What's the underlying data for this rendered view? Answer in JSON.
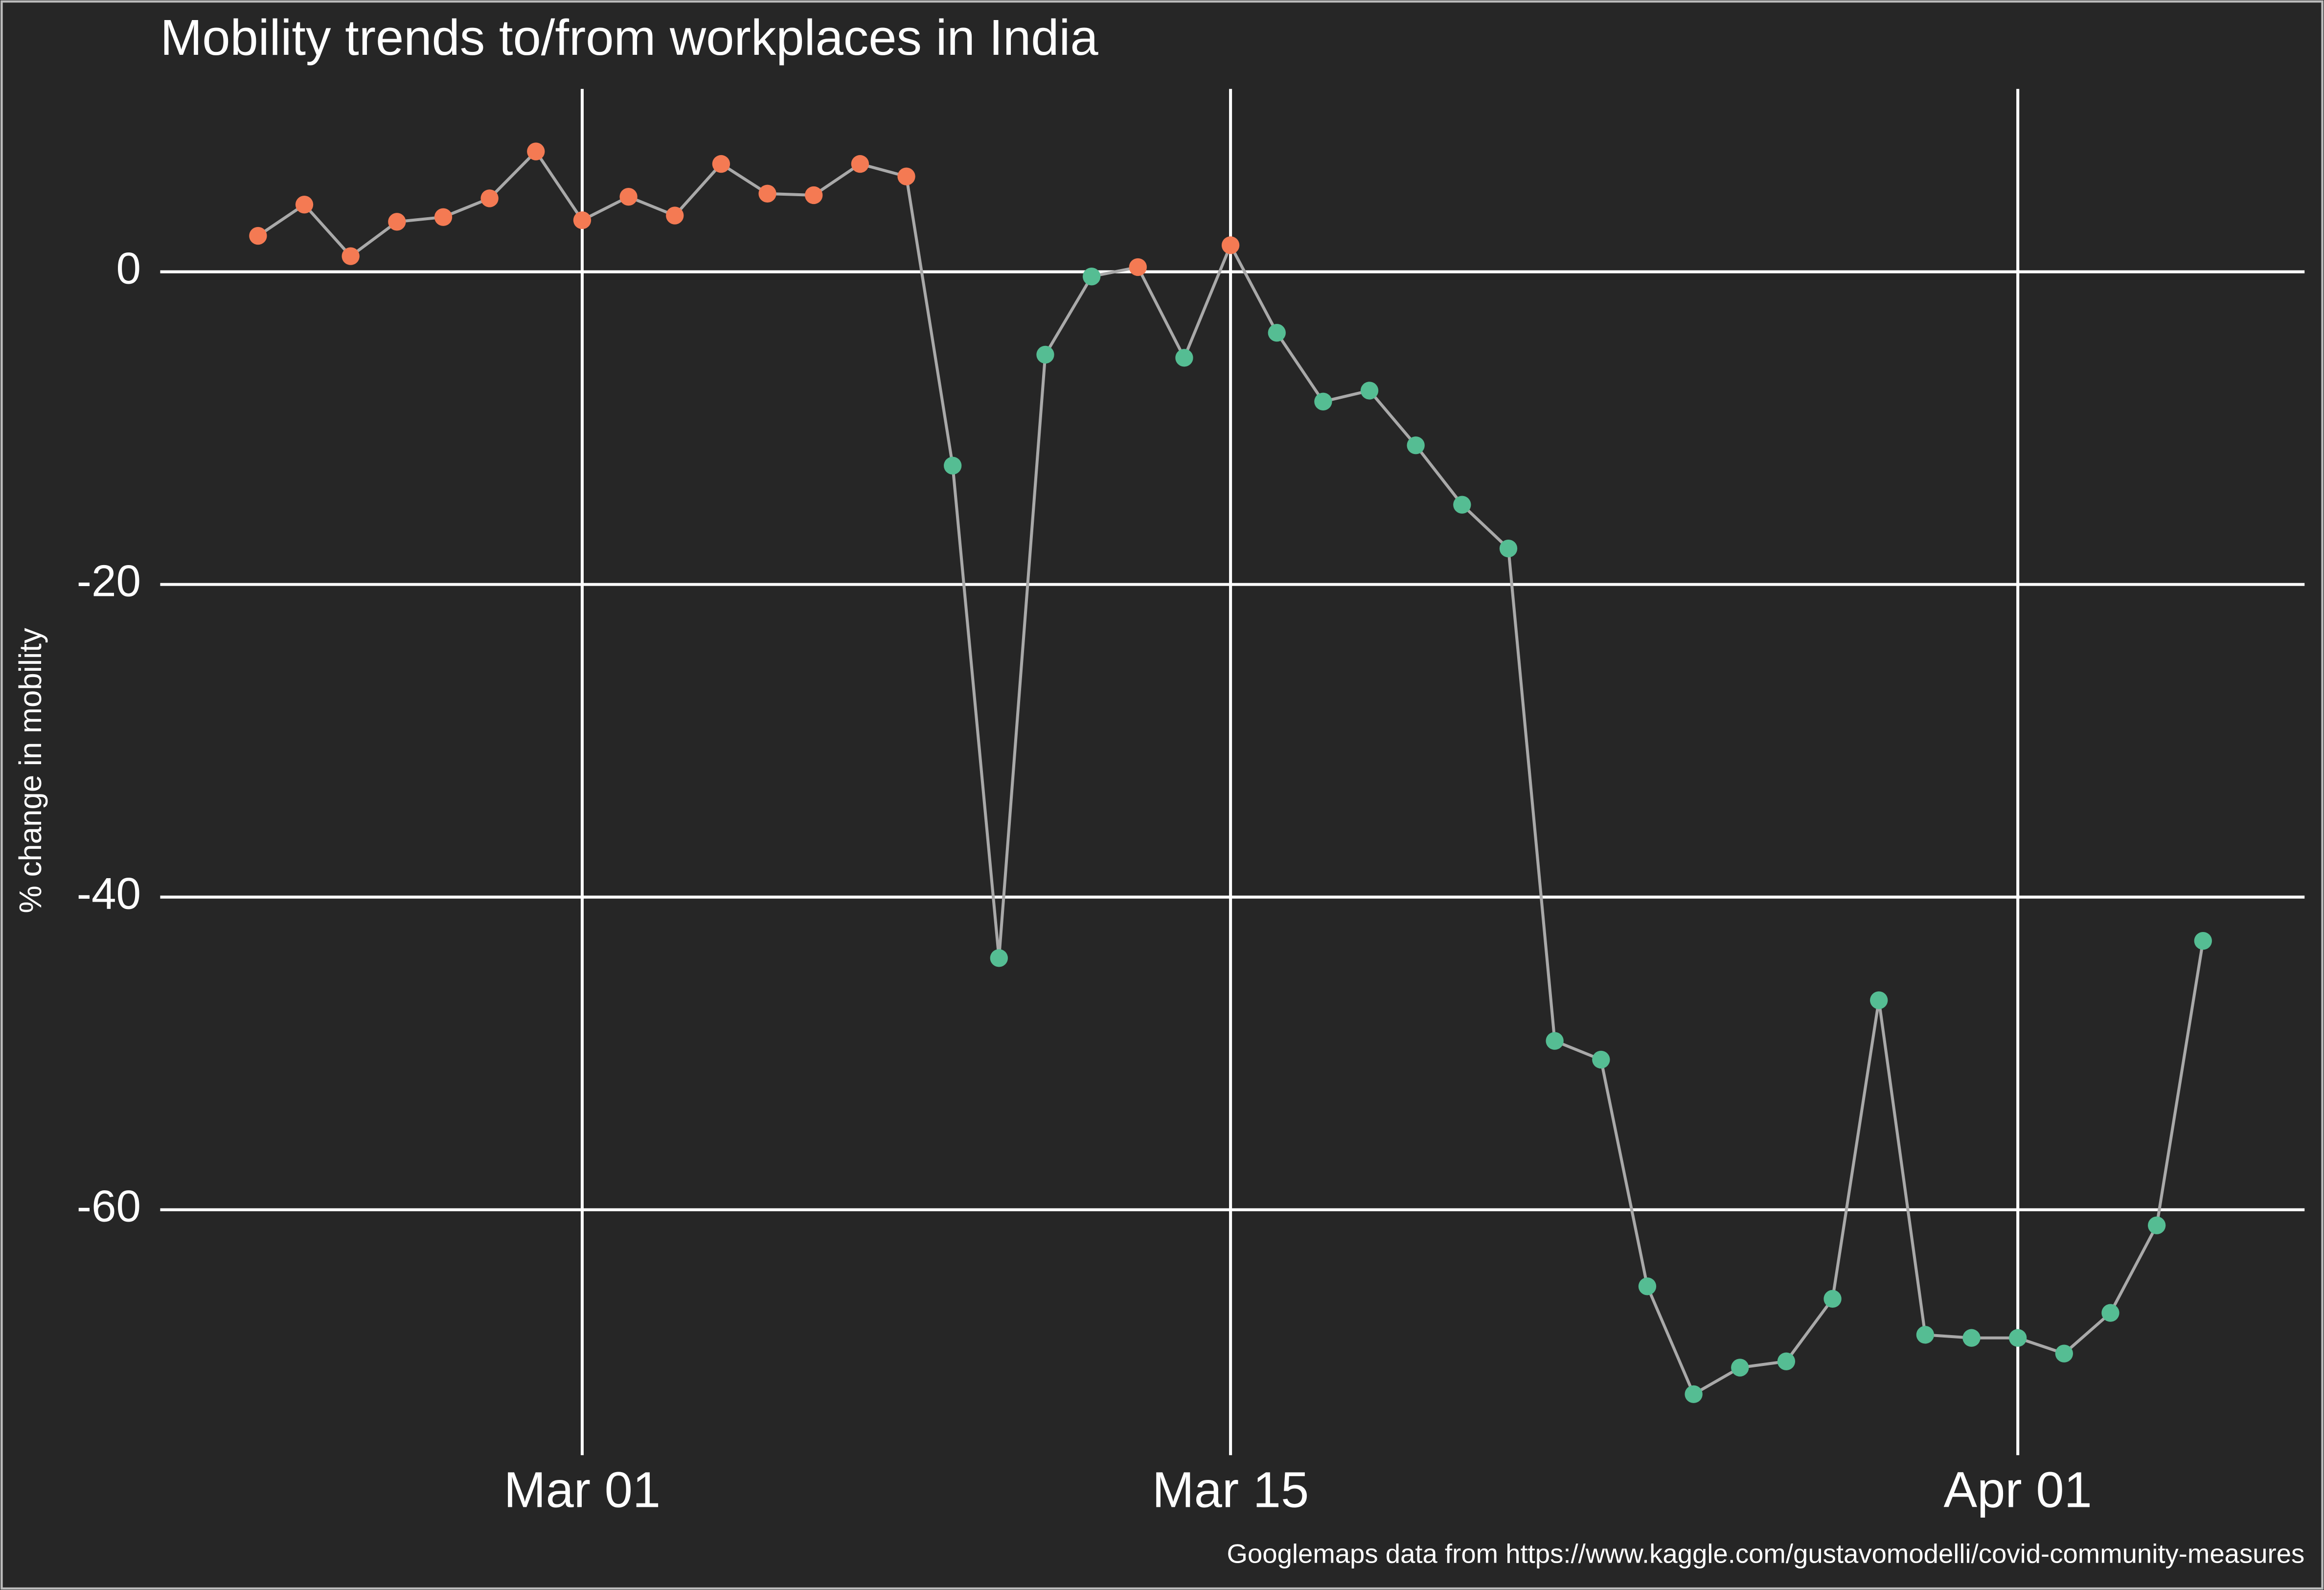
{
  "chart_data": {
    "type": "line",
    "title": "Mobility trends to/from workplaces in India",
    "y_label": "% change in mobility",
    "caption": "Googlemaps data from https://www.kaggle.com/gustavomodelli/covid-community-measures",
    "x": [
      "Feb 23",
      "Feb 24",
      "Feb 25",
      "Feb 26",
      "Feb 27",
      "Feb 28",
      "Feb 29",
      "Mar 01",
      "Mar 02",
      "Mar 03",
      "Mar 04",
      "Mar 05",
      "Mar 06",
      "Mar 07",
      "Mar 08",
      "Mar 09",
      "Mar 10",
      "Mar 11",
      "Mar 12",
      "Mar 13",
      "Mar 14",
      "Mar 15",
      "Mar 16",
      "Mar 17",
      "Mar 18",
      "Mar 19",
      "Mar 20",
      "Mar 21",
      "Mar 22",
      "Mar 23",
      "Mar 24",
      "Mar 25",
      "Mar 26",
      "Mar 27",
      "Mar 28",
      "Mar 29",
      "Mar 30",
      "Mar 31",
      "Apr 01",
      "Apr 02",
      "Apr 03",
      "Apr 04",
      "Apr 05"
    ],
    "values": [
      2.3,
      4.3,
      1.0,
      3.2,
      3.5,
      4.7,
      7.7,
      3.3,
      4.8,
      3.6,
      6.9,
      5.0,
      4.9,
      6.9,
      6.1,
      -12.4,
      -43.9,
      -5.3,
      -0.3,
      0.3,
      -5.5,
      1.7,
      -3.9,
      -8.3,
      -7.6,
      -11.1,
      -14.9,
      -17.7,
      -49.2,
      -50.4,
      -64.9,
      -71.8,
      -70.1,
      -69.7,
      -65.7,
      -46.6,
      -68.0,
      -68.2,
      -68.2,
      -69.2,
      -66.6,
      -61.0,
      -42.8
    ],
    "line_color": "#a9a9a9",
    "colors": {
      "above_zero": "#f47a53",
      "below_zero": "#55bd93"
    },
    "xticks": [
      "Mar 01",
      "Mar 15",
      "Apr 01"
    ],
    "ylim": [
      -75.7,
      11.7
    ],
    "yticks": [
      -60,
      -40,
      -20,
      0
    ],
    "grid": true
  }
}
